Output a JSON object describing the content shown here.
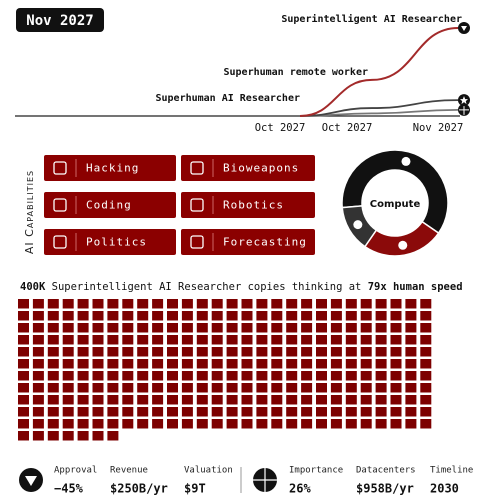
{
  "date": "Nov 2027",
  "chart_data": [
    {
      "type": "line",
      "categories": [
        "Oct 2027",
        "Oct 2027",
        "Nov 2027"
      ],
      "ylim": [
        0,
        100
      ],
      "series": [
        {
          "color": "#a32a2a",
          "values": [
            0,
            41,
            100
          ]
        },
        {
          "color": "#444444",
          "values": [
            0,
            9,
            18
          ]
        },
        {
          "color": "#777777",
          "values": [
            0,
            3,
            7
          ]
        }
      ],
      "annotations": [
        "Superintelligent AI Researcher",
        "Superhuman remote worker",
        "Superhuman AI Researcher"
      ]
    },
    {
      "type": "pie",
      "title": "Compute",
      "values": [
        61,
        25,
        14
      ],
      "colors": [
        "#111111",
        "#8b0a0a",
        "#333333"
      ]
    }
  ],
  "capabilities": {
    "label": "AI Capabilities",
    "items": [
      "Hacking",
      "Bioweapons",
      "Coding",
      "Robotics",
      "Politics",
      "Forecasting"
    ]
  },
  "copies": {
    "count": "400K",
    "text": " Superintelligent AI Researcher copies thinking at ",
    "speed": "79x human speed",
    "squares": 315,
    "color": "#7d0000"
  },
  "stats": [
    {
      "label": "Approval",
      "value": "−45%"
    },
    {
      "label": "Revenue",
      "value": "$250B/yr"
    },
    {
      "label": "Valuation",
      "value": "$9T"
    },
    {
      "label": "Importance",
      "value": "26%"
    },
    {
      "label": "Datacenters",
      "value": "$958B/yr"
    },
    {
      "label": "Timeline",
      "value": "2030"
    }
  ]
}
